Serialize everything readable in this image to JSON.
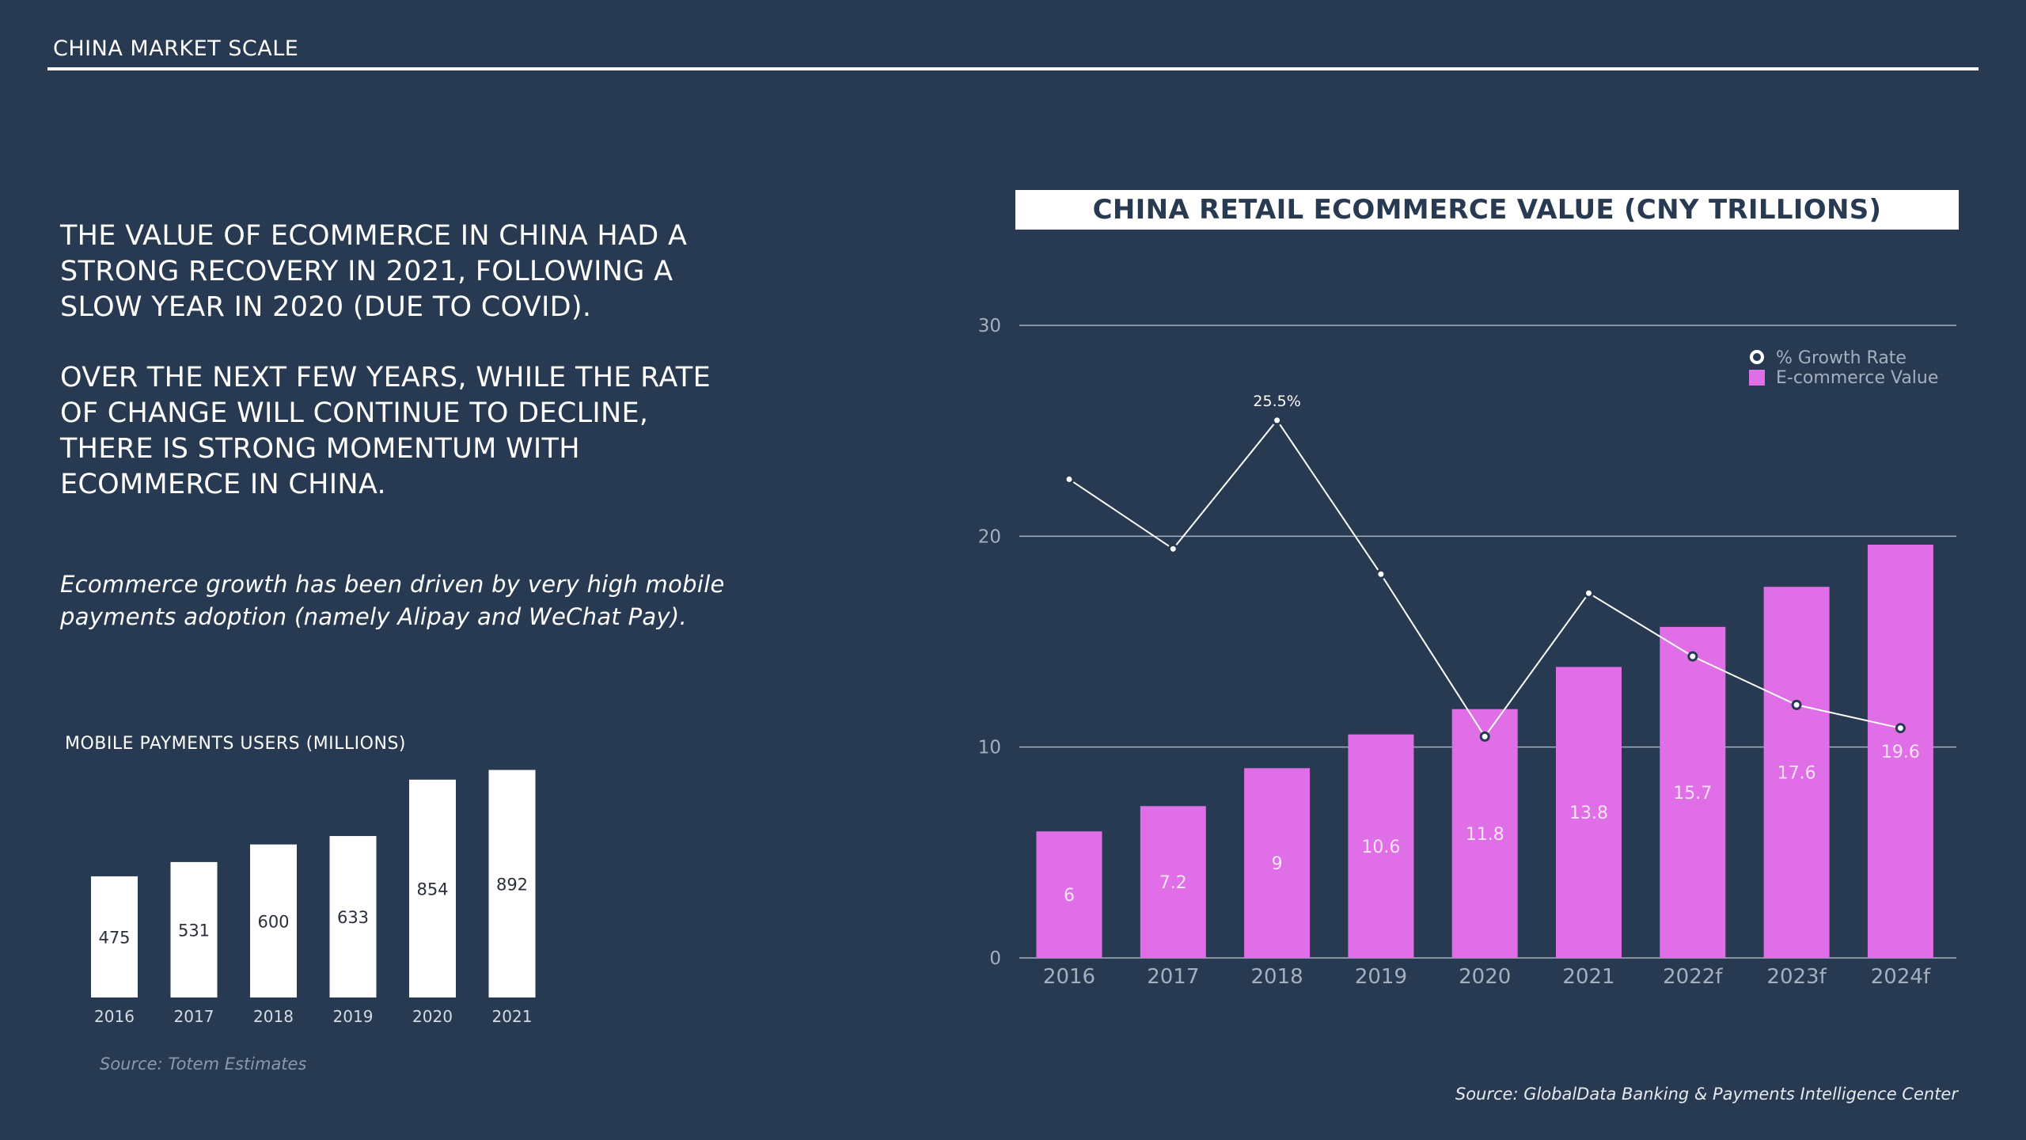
{
  "header": {
    "title": "CHINA MARKET SCALE"
  },
  "text": {
    "headline_1": "THE VALUE OF ECOMMERCE IN CHINA HAD A STRONG RECOVERY IN 2021, FOLLOWING A SLOW YEAR IN 2020 (DUE TO COVID).",
    "headline_2": "OVER THE NEXT FEW YEARS, WHILE THE RATE OF CHANGE WILL CONTINUE TO DECLINE, THERE IS STRONG MOMENTUM WITH ECOMMERCE IN CHINA.",
    "note": "Ecommerce growth has been driven by very high mobile payments adoption (namely Alipay and WeChat Pay)."
  },
  "sources": {
    "left": "Source: Totem Estimates",
    "right": "Source: GlobalData Banking & Payments Intelligence Center"
  },
  "colors": {
    "background": "#273a52",
    "bar_pink": "#e06ee6",
    "white": "#ffffff"
  },
  "chart_data": [
    {
      "type": "bar",
      "title": "MOBILE PAYMENTS USERS  (MILLIONS)",
      "categories": [
        "2016",
        "2017",
        "2018",
        "2019",
        "2020",
        "2021"
      ],
      "values": [
        475,
        531,
        600,
        633,
        854,
        892
      ],
      "value_labels": [
        "475",
        "531",
        "600",
        "633",
        "854",
        "892"
      ],
      "ylim": [
        0,
        900
      ]
    },
    {
      "type": "bar",
      "title": "CHINA RETAIL ECOMMERCE VALUE (CNY TRILLIONS)",
      "categories": [
        "2016",
        "2017",
        "2018",
        "2019",
        "2020",
        "2021",
        "2022f",
        "2023f",
        "2024f"
      ],
      "ylim": [
        0,
        30
      ],
      "yticks": [
        "0",
        "10",
        "20",
        "30"
      ],
      "grid": true,
      "legend": "top-right",
      "series": [
        {
          "name": "E-commerce Value",
          "type": "bar",
          "values": [
            6,
            7.2,
            9,
            10.6,
            11.8,
            13.8,
            15.7,
            17.6,
            19.6
          ],
          "value_labels": [
            "6",
            "7.2",
            "9",
            "10.6",
            "11.8",
            "13.8",
            "15.7",
            "17.6",
            "19.6"
          ]
        },
        {
          "name": "% Growth Rate",
          "type": "line",
          "values": [
            22.7,
            19.4,
            25.5,
            18.2,
            10.5,
            17.3,
            14.3,
            12,
            10.9
          ],
          "value_labels": [
            "",
            "",
            "25.5%",
            "",
            "",
            "",
            "",
            "",
            ""
          ]
        }
      ]
    }
  ]
}
